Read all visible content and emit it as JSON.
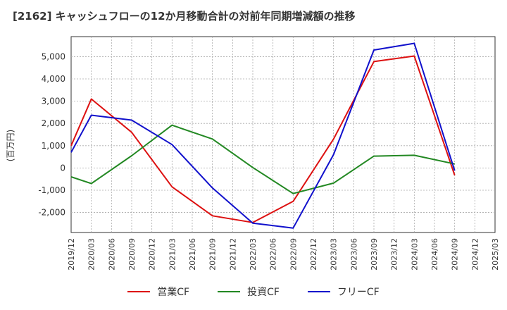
{
  "chart_data": {
    "type": "line",
    "title": "[2162]  キャッシュフローの12か月移動合計の対前年同期増減額の推移",
    "ylabel": "(百万円)",
    "xlabel": "",
    "ylim": [
      -2900,
      5900
    ],
    "yticks": [
      -2000,
      -1000,
      0,
      1000,
      2000,
      3000,
      4000,
      5000
    ],
    "ytick_labels": [
      "-2,000",
      "-1,000",
      "0",
      "1,000",
      "2,000",
      "3,000",
      "4,000",
      "5,000"
    ],
    "categories": [
      "2019/12",
      "2020/03",
      "2020/06",
      "2020/09",
      "2020/12",
      "2021/03",
      "2021/06",
      "2021/09",
      "2021/12",
      "2022/03",
      "2022/06",
      "2022/09",
      "2022/12",
      "2023/03",
      "2023/06",
      "2023/09",
      "2023/12",
      "2024/03",
      "2024/06",
      "2024/09",
      "2024/12",
      "2025/03"
    ],
    "grid": true,
    "legend_position": "bottom",
    "series": [
      {
        "name": "営業CF",
        "color": "#dd1111",
        "points": [
          [
            "2019/12",
            1000
          ],
          [
            "2020/03",
            3100
          ],
          [
            "2020/09",
            1600
          ],
          [
            "2021/03",
            -850
          ],
          [
            "2021/09",
            -2150
          ],
          [
            "2022/03",
            -2450
          ],
          [
            "2022/09",
            -1500
          ],
          [
            "2023/03",
            1300
          ],
          [
            "2023/09",
            4780
          ],
          [
            "2024/03",
            5030
          ],
          [
            "2024/09",
            -330
          ]
        ]
      },
      {
        "name": "投資CF",
        "color": "#228822",
        "points": [
          [
            "2019/12",
            -400
          ],
          [
            "2020/03",
            -700
          ],
          [
            "2020/09",
            550
          ],
          [
            "2021/03",
            1920
          ],
          [
            "2021/09",
            1300
          ],
          [
            "2022/03",
            20
          ],
          [
            "2022/09",
            -1150
          ],
          [
            "2023/03",
            -680
          ],
          [
            "2023/09",
            530
          ],
          [
            "2024/03",
            570
          ],
          [
            "2024/09",
            180
          ]
        ]
      },
      {
        "name": "フリーCF",
        "color": "#1111cc",
        "points": [
          [
            "2019/12",
            700
          ],
          [
            "2020/03",
            2370
          ],
          [
            "2020/09",
            2150
          ],
          [
            "2021/03",
            1050
          ],
          [
            "2021/09",
            -900
          ],
          [
            "2022/03",
            -2480
          ],
          [
            "2022/09",
            -2700
          ],
          [
            "2023/03",
            600
          ],
          [
            "2023/09",
            5300
          ],
          [
            "2024/03",
            5600
          ],
          [
            "2024/09",
            -120
          ]
        ]
      }
    ]
  }
}
